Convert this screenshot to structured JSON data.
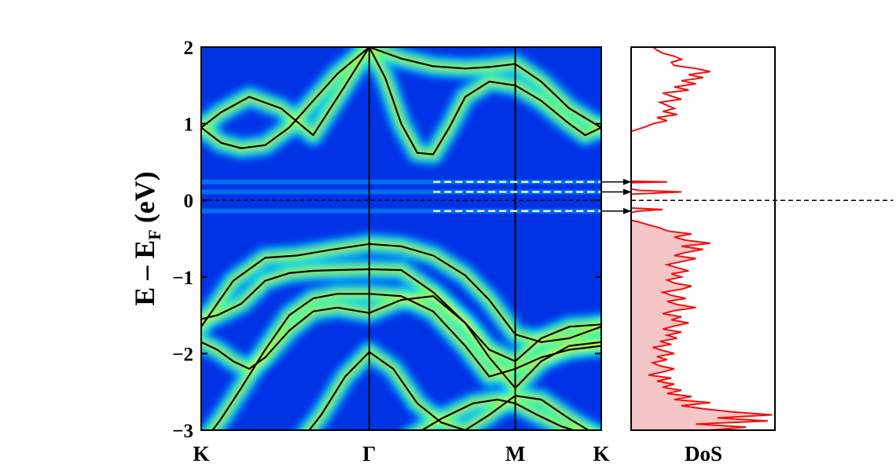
{
  "chart_data": [
    {
      "type": "heatmap",
      "panel": "band-structure",
      "ylabel_main": "E – E",
      "ylabel_sub": "F",
      "ylabel_unit": "(eV)",
      "ylim": [
        -3,
        2
      ],
      "yticks": [
        2,
        1,
        0,
        -1,
        -2,
        -3
      ],
      "ytick_labels": [
        "2",
        "1",
        "0",
        "−1",
        "−2",
        "−3"
      ],
      "x_path": [
        {
          "label": "K",
          "pos": 0
        },
        {
          "label": "Γ",
          "pos": 0.42
        },
        {
          "label": "M",
          "pos": 0.785
        },
        {
          "label": "K",
          "pos": 1
        }
      ],
      "fermi_level": 0,
      "defect_levels_eV": [
        0.24,
        0.11,
        -0.14
      ],
      "colors": {
        "background": "#0033e6",
        "bright": "#00e0ff",
        "mid": "#2bff9a",
        "peak": "#ffee00",
        "hot": "#ff5a1a",
        "bands": "#000000",
        "defect_dash": "#ffffff"
      },
      "bands": [
        {
          "x": [
            0,
            0.05,
            0.12,
            0.2,
            0.28,
            0.36,
            0.42,
            0.5,
            0.58,
            0.66,
            0.72,
            0.785,
            0.85,
            0.92,
            1
          ],
          "y": [
            0.95,
            1.15,
            1.35,
            1.2,
            0.85,
            1.5,
            2.0,
            1.85,
            1.75,
            1.72,
            1.74,
            1.78,
            1.55,
            1.2,
            0.95
          ]
        },
        {
          "x": [
            0,
            0.05,
            0.1,
            0.16,
            0.22,
            0.28,
            0.34,
            0.42
          ],
          "y": [
            0.95,
            0.75,
            0.68,
            0.72,
            0.95,
            1.3,
            1.65,
            2.0
          ]
        },
        {
          "x": [
            0.42,
            0.46,
            0.5,
            0.54,
            0.58,
            0.62,
            0.66,
            0.72,
            0.785,
            0.85,
            0.92,
            0.96,
            1
          ],
          "y": [
            2.0,
            1.6,
            1.0,
            0.62,
            0.6,
            0.95,
            1.35,
            1.55,
            1.5,
            1.3,
            1.0,
            0.85,
            0.95
          ]
        },
        {
          "x": [
            0,
            0.08,
            0.16,
            0.24,
            0.32,
            0.42,
            0.5,
            0.58,
            0.66,
            0.72,
            0.785,
            0.85,
            0.92,
            1
          ],
          "y": [
            -1.65,
            -1.05,
            -0.75,
            -0.72,
            -0.65,
            -0.57,
            -0.6,
            -0.72,
            -0.98,
            -1.3,
            -1.75,
            -1.85,
            -1.8,
            -1.65
          ]
        },
        {
          "x": [
            0,
            0.04,
            0.1,
            0.16,
            0.22,
            0.28,
            0.34,
            0.42,
            0.5,
            0.58,
            0.66,
            0.72,
            0.785,
            0.85,
            0.92,
            1
          ],
          "y": [
            -1.55,
            -1.5,
            -1.35,
            -1.05,
            -0.95,
            -0.92,
            -0.91,
            -0.9,
            -0.91,
            -1.2,
            -1.6,
            -1.95,
            -2.1,
            -1.8,
            -1.65,
            -1.62
          ]
        },
        {
          "x": [
            0,
            0.04,
            0.08,
            0.12,
            0.16,
            0.22,
            0.28,
            0.34,
            0.42,
            0.5,
            0.58,
            0.66,
            0.72,
            0.785,
            0.85,
            0.92,
            1
          ],
          "y": [
            -1.85,
            -1.95,
            -2.1,
            -2.2,
            -2.05,
            -1.7,
            -1.45,
            -1.4,
            -1.47,
            -1.3,
            -1.25,
            -1.6,
            -2.05,
            -2.45,
            -2.1,
            -1.9,
            -1.85
          ]
        },
        {
          "x": [
            0,
            0.05,
            0.1,
            0.16,
            0.22,
            0.28,
            0.34,
            0.42,
            0.5,
            0.58,
            0.66,
            0.72,
            0.785,
            0.85,
            0.92,
            1
          ],
          "y": [
            -3.2,
            -2.85,
            -2.45,
            -1.95,
            -1.5,
            -1.28,
            -1.22,
            -1.22,
            -1.25,
            -1.45,
            -1.9,
            -2.3,
            -2.2,
            -2.05,
            -1.95,
            -1.9
          ]
        },
        {
          "x": [
            0.24,
            0.3,
            0.36,
            0.42,
            0.48,
            0.54,
            0.6,
            0.66,
            0.72,
            0.785,
            0.85,
            0.92,
            1
          ],
          "y": [
            -3.2,
            -2.8,
            -2.3,
            -1.98,
            -2.2,
            -2.65,
            -2.9,
            -3.0,
            -2.8,
            -2.55,
            -2.6,
            -2.85,
            -3.1
          ]
        },
        {
          "x": [
            0.52,
            0.6,
            0.68,
            0.74,
            0.785,
            0.84,
            0.9,
            0.96,
            1
          ],
          "y": [
            -3.1,
            -2.85,
            -2.65,
            -2.6,
            -2.65,
            -2.8,
            -2.95,
            -3.05,
            -3.1
          ]
        }
      ]
    },
    {
      "type": "line",
      "panel": "density-of-states",
      "xlabel": "DoS",
      "ylim": [
        -3,
        2
      ],
      "colors": {
        "line": "#ee1111",
        "fill": "#f4c6c6"
      },
      "occupied_fill_below_eV": -0.25,
      "series": [
        {
          "y": [
            -3.0,
            -2.96,
            -2.92,
            -2.88,
            -2.84,
            -2.8,
            -2.76,
            -2.72,
            -2.68,
            -2.64,
            -2.6,
            -2.56,
            -2.52,
            -2.48,
            -2.44,
            -2.4,
            -2.36,
            -2.32,
            -2.28,
            -2.24,
            -2.2,
            -2.16,
            -2.12,
            -2.08,
            -2.04,
            -2.0,
            -1.96,
            -1.92,
            -1.88,
            -1.84,
            -1.8,
            -1.76,
            -1.72,
            -1.68,
            -1.64,
            -1.6,
            -1.56,
            -1.52,
            -1.48,
            -1.44,
            -1.4,
            -1.36,
            -1.32,
            -1.28,
            -1.24,
            -1.2,
            -1.16,
            -1.12,
            -1.08,
            -1.04,
            -1.0,
            -0.96,
            -0.92,
            -0.88,
            -0.84,
            -0.8,
            -0.76,
            -0.72,
            -0.68,
            -0.64,
            -0.6,
            -0.56,
            -0.52,
            -0.48,
            -0.44,
            -0.4,
            -0.36,
            -0.32,
            -0.28,
            -0.26,
            -0.22,
            -0.18,
            -0.16,
            -0.14,
            -0.12,
            -0.1,
            -0.05,
            0.0,
            0.03,
            0.05,
            0.08,
            0.11,
            0.13,
            0.15,
            0.2,
            0.23,
            0.24,
            0.25,
            0.3,
            0.5,
            0.7,
            0.9,
            0.93,
            0.96,
            1.0,
            1.04,
            1.08,
            1.12,
            1.16,
            1.2,
            1.24,
            1.28,
            1.32,
            1.36,
            1.4,
            1.44,
            1.48,
            1.52,
            1.56,
            1.6,
            1.64,
            1.68,
            1.72,
            1.76,
            1.8,
            1.84,
            1.88,
            1.92,
            1.96,
            2.0
          ],
          "values": [
            0.55,
            0.8,
            0.45,
            0.95,
            0.6,
            0.98,
            0.7,
            0.5,
            0.35,
            0.55,
            0.3,
            0.42,
            0.25,
            0.35,
            0.22,
            0.3,
            0.18,
            0.28,
            0.12,
            0.22,
            0.3,
            0.2,
            0.15,
            0.25,
            0.18,
            0.3,
            0.22,
            0.15,
            0.28,
            0.2,
            0.32,
            0.25,
            0.35,
            0.22,
            0.3,
            0.4,
            0.28,
            0.35,
            0.22,
            0.3,
            0.45,
            0.32,
            0.25,
            0.38,
            0.28,
            0.22,
            0.35,
            0.42,
            0.3,
            0.25,
            0.35,
            0.28,
            0.4,
            0.32,
            0.25,
            0.35,
            0.45,
            0.3,
            0.38,
            0.5,
            0.35,
            0.55,
            0.38,
            0.3,
            0.42,
            0.25,
            0.2,
            0.12,
            0.05,
            0.0,
            0.0,
            0.0,
            0.0,
            0.05,
            0.22,
            0.0,
            0.0,
            0.0,
            0.0,
            0.0,
            0.0,
            0.35,
            0.05,
            0.0,
            0.0,
            0.0,
            0.25,
            0.0,
            0.0,
            0.0,
            0.0,
            0.0,
            0.05,
            0.1,
            0.15,
            0.25,
            0.18,
            0.32,
            0.22,
            0.3,
            0.25,
            0.2,
            0.35,
            0.28,
            0.22,
            0.4,
            0.3,
            0.45,
            0.35,
            0.5,
            0.4,
            0.55,
            0.45,
            0.3,
            0.28,
            0.35,
            0.3,
            0.22,
            0.18,
            0.15
          ]
        }
      ]
    }
  ]
}
